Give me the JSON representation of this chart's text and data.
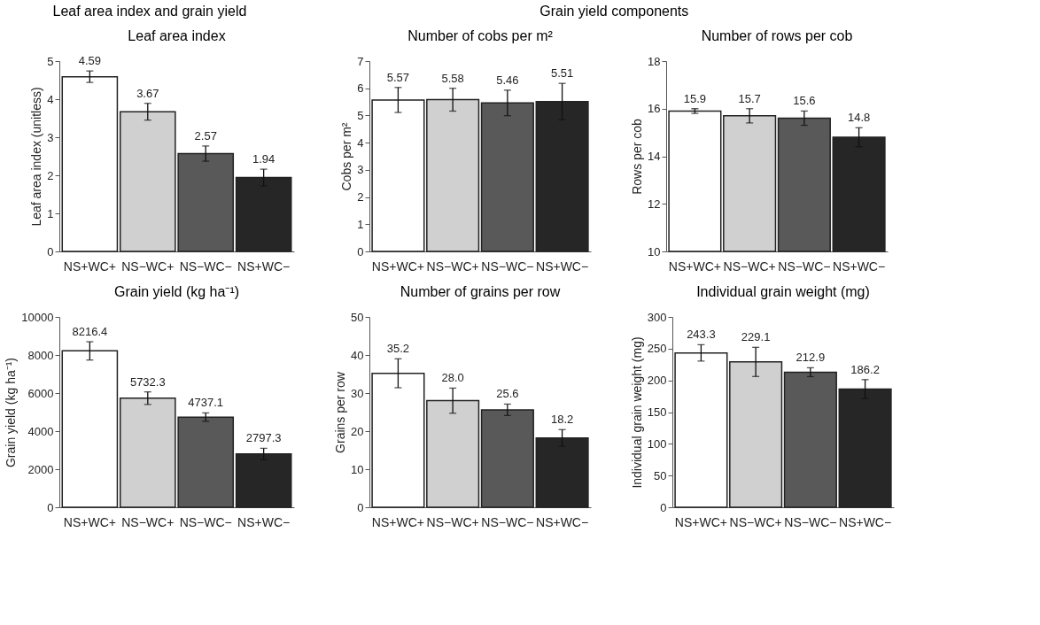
{
  "chart_data": [
    {
      "type": "bar",
      "title": "Leaf area index",
      "ylabel": "Leaf area index (unitless)",
      "annotations": [
        "Leaf area index and grain yield"
      ],
      "categories": [
        "NS+WC+",
        "NS−WC+",
        "NS−WC−",
        "NS+WC−"
      ],
      "values": [
        4.59,
        3.67,
        2.57,
        1.94
      ],
      "errors": [
        0.15,
        0.22,
        0.2,
        0.22
      ],
      "colors": [
        "#ffffff",
        "#d0d0d0",
        "#595959",
        "#262626"
      ],
      "ylim": [
        0,
        5
      ],
      "yticks": [
        0,
        1,
        2,
        3,
        4,
        5
      ],
      "data_labels": true,
      "grid": false
    },
    {
      "type": "bar",
      "title": "Number of cobs per m²",
      "ylabel": "Cobs per m²",
      "annotations": [
        "Grain yield components"
      ],
      "categories": [
        "NS+WC+",
        "NS−WC+",
        "NS−WC−",
        "NS+WC−"
      ],
      "values": [
        5.57,
        5.58,
        5.46,
        5.51
      ],
      "errors": [
        0.46,
        0.42,
        0.47,
        0.67
      ],
      "colors": [
        "#ffffff",
        "#d0d0d0",
        "#595959",
        "#262626"
      ],
      "ylim": [
        0,
        7
      ],
      "yticks": [
        0,
        1,
        2,
        3,
        4,
        5,
        6,
        7
      ],
      "data_labels": true,
      "grid": false
    },
    {
      "type": "bar",
      "title": "Number of rows per cob",
      "ylabel": "Rows per cob",
      "categories": [
        "NS+WC+",
        "NS−WC+",
        "NS−WC−",
        "NS+WC−"
      ],
      "values": [
        15.9,
        15.7,
        15.6,
        14.8
      ],
      "errors": [
        0.1,
        0.3,
        0.3,
        0.4
      ],
      "colors": [
        "#ffffff",
        "#d0d0d0",
        "#595959",
        "#262626"
      ],
      "ylim": [
        10,
        18
      ],
      "yticks": [
        10,
        12,
        14,
        16,
        18
      ],
      "data_labels": true,
      "grid": false
    },
    {
      "type": "bar",
      "title": "Grain yield (kg ha⁻¹)",
      "ylabel": "Grain yield (kg ha⁻¹)",
      "categories": [
        "NS+WC+",
        "NS−WC+",
        "NS−WC−",
        "NS+WC−"
      ],
      "values": [
        8216.4,
        5732.3,
        4737.1,
        2797.3
      ],
      "errors": [
        480,
        330,
        220,
        300
      ],
      "colors": [
        "#ffffff",
        "#d0d0d0",
        "#595959",
        "#262626"
      ],
      "ylim": [
        0,
        10000
      ],
      "yticks": [
        0,
        2000,
        4000,
        6000,
        8000,
        10000
      ],
      "data_labels": true,
      "grid": false
    },
    {
      "type": "bar",
      "title": "Number of grains per row",
      "ylabel": "Grains per row",
      "categories": [
        "NS+WC+",
        "NS−WC+",
        "NS−WC−",
        "NS+WC−"
      ],
      "values": [
        35.2,
        28.0,
        25.6,
        18.2
      ],
      "value_labels": [
        "35.2",
        "28.0",
        "25.6",
        "18.2"
      ],
      "errors": [
        3.8,
        3.3,
        1.5,
        2.2
      ],
      "colors": [
        "#ffffff",
        "#d0d0d0",
        "#595959",
        "#262626"
      ],
      "ylim": [
        0,
        50
      ],
      "yticks": [
        0,
        10,
        20,
        30,
        40,
        50
      ],
      "grid": false
    },
    {
      "type": "bar",
      "title": "Individual grain weight (mg)",
      "ylabel": "Individual grain weight (mg)",
      "categories": [
        "NS+WC+",
        "NS−WC+",
        "NS−WC−",
        "NS+WC−"
      ],
      "values": [
        243.3,
        229.1,
        212.9,
        186.2
      ],
      "errors": [
        13,
        23,
        7,
        15
      ],
      "colors": [
        "#ffffff",
        "#d0d0d0",
        "#595959",
        "#262626"
      ],
      "ylim": [
        0,
        300
      ],
      "yticks": [
        0,
        50,
        100,
        150,
        200,
        250,
        300
      ],
      "data_labels": true,
      "grid": false
    }
  ]
}
